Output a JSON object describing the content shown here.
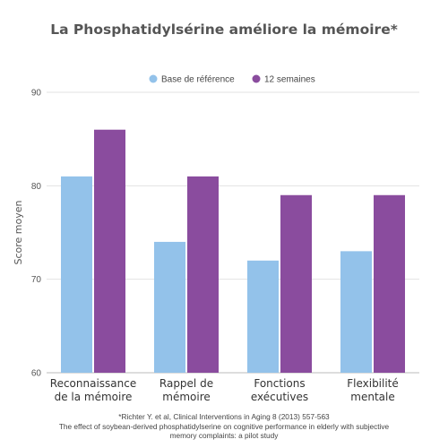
{
  "chart_data": {
    "type": "bar",
    "title": "La Phosphatidylsérine améliore la mémoire*",
    "ylabel": "Score moyen",
    "xlabel": "",
    "ylim": [
      60,
      90
    ],
    "yticks": [
      60,
      70,
      80,
      90
    ],
    "grid": true,
    "legend": "top-center",
    "categories": [
      [
        "Reconnaissance",
        "de la mémoire"
      ],
      [
        "Rappel de",
        "mémoire"
      ],
      [
        "Fonctions",
        "exécutives"
      ],
      [
        "Flexibilité",
        "mentale"
      ]
    ],
    "series": [
      {
        "name": "Base de référence",
        "color": "#93c2ea",
        "values": [
          81,
          74,
          72,
          73
        ]
      },
      {
        "name": "12 semaines",
        "color": "#8a4c9e",
        "values": [
          86,
          81,
          79,
          79
        ]
      }
    ]
  },
  "footnote": {
    "line1": "*Richter Y. et al, Clinical Interventions in Aging 8 (2013) 557-563",
    "line2": "The effect of soybean-derived phosphatidylserine on cognitive performance in elderly with subjective",
    "line3": "memory complaints: a pilot study"
  }
}
